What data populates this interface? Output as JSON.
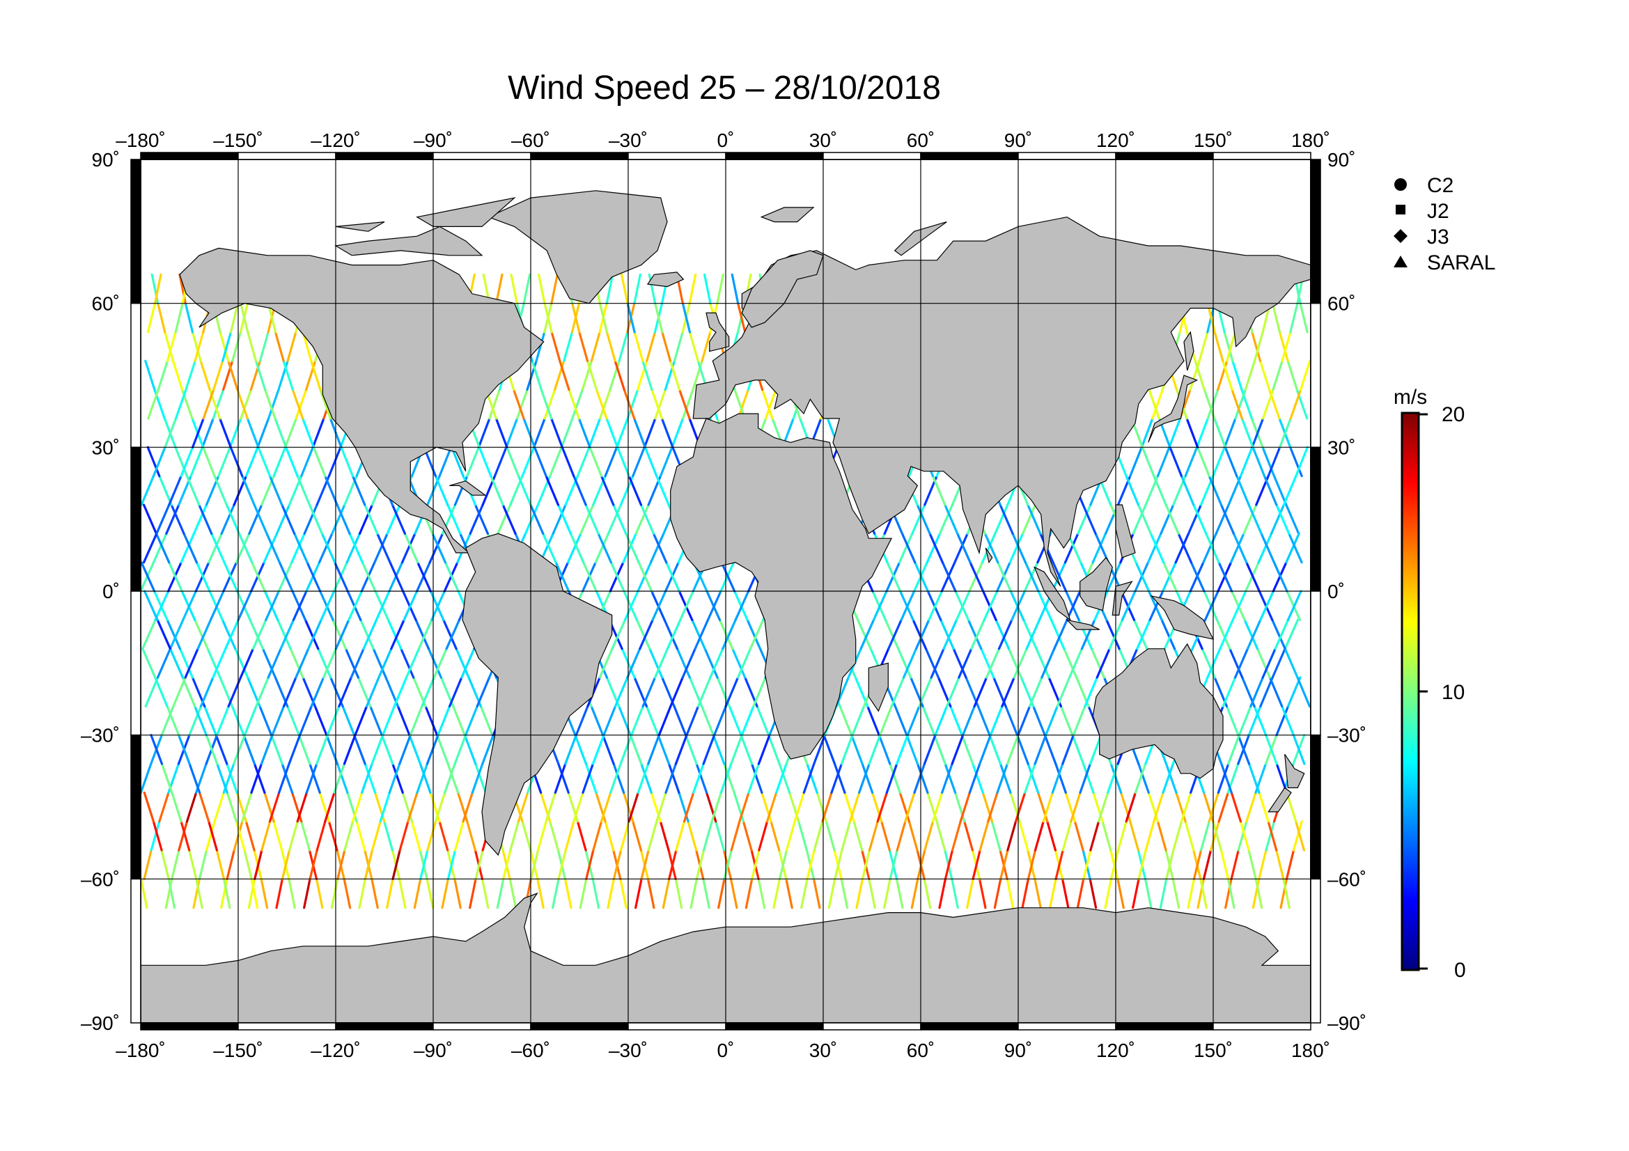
{
  "title": "Wind Speed 25 – 28/10/2018",
  "x_ticks": [
    "–180˚",
    "–150˚",
    "–120˚",
    "–90˚",
    "–60˚",
    "–30˚",
    "0˚",
    "30˚",
    "60˚",
    "90˚",
    "120˚",
    "150˚",
    "180˚"
  ],
  "y_ticks_left": [
    "90˚",
    "60˚",
    "30˚",
    "0˚",
    "–30˚",
    "–60˚",
    "–90˚"
  ],
  "y_ticks_right": [
    "90˚",
    "60˚",
    "30˚",
    "0˚",
    "–30˚",
    "–60˚",
    "–90˚"
  ],
  "legend": [
    {
      "label": "C2",
      "symbol": "circle-icon"
    },
    {
      "label": "J2",
      "symbol": "square-icon"
    },
    {
      "label": "J3",
      "symbol": "diamond-icon"
    },
    {
      "label": "SARAL",
      "symbol": "triangle-icon"
    }
  ],
  "colorbar": {
    "unit": "m/s",
    "min_label": "0",
    "mid_label": "10",
    "max_label": "20",
    "min": 0,
    "max": 20,
    "colors": [
      "#00007f",
      "#0000ff",
      "#007fff",
      "#00ffff",
      "#7fff7f",
      "#ffff00",
      "#ff7f00",
      "#ff0000",
      "#7f0000"
    ]
  },
  "map": {
    "land_color": "#bebebe",
    "ocean_color": "#ffffff",
    "lon_range": [
      -180,
      180
    ],
    "lat_range": [
      -90,
      90
    ],
    "track_coverage_lat": [
      -66,
      66
    ]
  }
}
